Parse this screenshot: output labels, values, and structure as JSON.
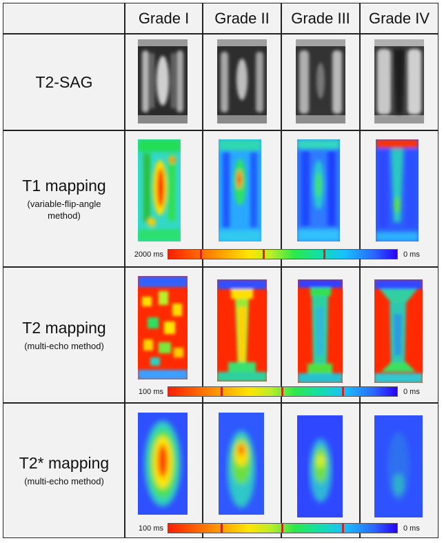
{
  "columns": [
    "Grade I",
    "Grade II",
    "Grade III",
    "Grade IV"
  ],
  "rows": [
    {
      "label": "T2-SAG",
      "sub": ""
    },
    {
      "label": "T1 mapping",
      "sub": "(variable-flip-angle\nmethod)"
    },
    {
      "label": "T2 mapping",
      "sub": "(multi-echo method)"
    },
    {
      "label": "T2* mapping",
      "sub": "(multi-echo method)"
    }
  ],
  "scales": [
    {
      "max": "2000 ms",
      "min": "0 ms"
    },
    {
      "max": "100 ms",
      "min": "0 ms"
    },
    {
      "max": "100 ms",
      "min": "0 ms"
    }
  ],
  "colors": {
    "grid_line": "#222222",
    "cell_bg": "#f2f2f2",
    "tick": "#d9201b"
  }
}
